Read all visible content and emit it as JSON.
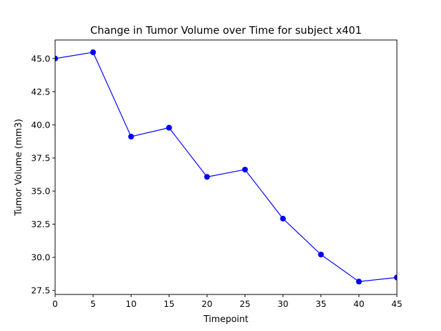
{
  "chart_data": {
    "type": "line",
    "title": "Change in Tumor Volume over Time for subject x401",
    "xlabel": "Timepoint",
    "ylabel": "Tumor Volume (mm3)",
    "x": [
      0,
      5,
      10,
      15,
      20,
      25,
      30,
      35,
      40,
      45
    ],
    "series": [
      {
        "values": [
          45.0,
          45.47,
          39.11,
          39.78,
          36.07,
          36.62,
          32.92,
          30.21,
          28.17,
          28.48
        ],
        "color": "#0000ff",
        "marker": "circle"
      }
    ],
    "xlim": [
      0,
      45
    ],
    "ylim": [
      27.2,
      46.4
    ],
    "xticks": [
      0,
      5,
      10,
      15,
      20,
      25,
      30,
      35,
      40,
      45
    ],
    "yticks": [
      27.5,
      30.0,
      32.5,
      35.0,
      37.5,
      40.0,
      42.5,
      45.0
    ],
    "ytick_labels": [
      "27.5",
      "30.0",
      "32.5",
      "35.0",
      "37.5",
      "40.0",
      "42.5",
      "45.0"
    ],
    "grid": false,
    "legend": "none"
  }
}
